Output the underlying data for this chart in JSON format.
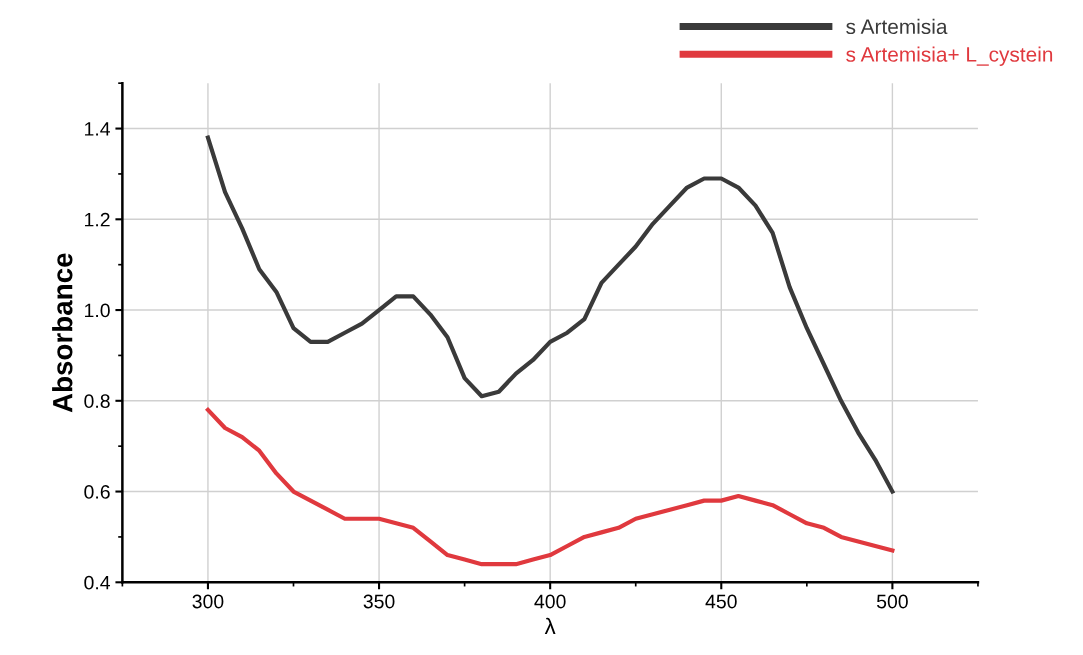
{
  "chart_data": {
    "type": "line",
    "xlabel": "λ",
    "ylabel": "Absorbance",
    "x": [
      300,
      305,
      310,
      315,
      320,
      325,
      330,
      335,
      340,
      345,
      350,
      355,
      360,
      365,
      370,
      375,
      380,
      385,
      390,
      395,
      400,
      405,
      410,
      415,
      420,
      425,
      430,
      435,
      440,
      445,
      450,
      455,
      460,
      465,
      470,
      475,
      480,
      485,
      490,
      495,
      500
    ],
    "series": [
      {
        "name": "s Artemisia",
        "color": "#3a3a3a",
        "values": [
          1.38,
          1.26,
          1.18,
          1.09,
          1.04,
          0.96,
          0.93,
          0.93,
          0.95,
          0.97,
          1.0,
          1.03,
          1.03,
          0.99,
          0.94,
          0.85,
          0.81,
          0.82,
          0.86,
          0.89,
          0.93,
          0.95,
          0.98,
          1.06,
          1.1,
          1.14,
          1.19,
          1.23,
          1.27,
          1.29,
          1.29,
          1.27,
          1.23,
          1.17,
          1.05,
          0.96,
          0.88,
          0.8,
          0.73,
          0.67,
          0.6
        ]
      },
      {
        "name": "s Artemisia+ L_cystein",
        "color": "#e0393e",
        "values": [
          0.78,
          0.74,
          0.72,
          0.69,
          0.64,
          0.6,
          0.58,
          0.56,
          0.54,
          0.54,
          0.54,
          0.53,
          0.52,
          0.49,
          0.46,
          0.45,
          0.44,
          0.44,
          0.44,
          0.45,
          0.46,
          0.48,
          0.5,
          0.51,
          0.52,
          0.54,
          0.55,
          0.56,
          0.57,
          0.58,
          0.58,
          0.59,
          0.58,
          0.57,
          0.55,
          0.53,
          0.52,
          0.5,
          0.49,
          0.48,
          0.47
        ]
      }
    ],
    "xlim": [
      275,
      525
    ],
    "xticks": [
      300,
      350,
      400,
      450,
      500
    ],
    "ylim": [
      0.4,
      1.5
    ],
    "yticks": [
      {
        "value": 0.4,
        "label": "0.4"
      },
      {
        "value": 0.6,
        "label": "0.6"
      },
      {
        "value": 0.8,
        "label": "0.8"
      },
      {
        "value": 1.0,
        "label": "1.0"
      },
      {
        "value": 1.2,
        "label": "1.2"
      },
      {
        "value": 1.4,
        "label": "1.4"
      }
    ],
    "grid": true,
    "legend": "top right",
    "line_style": "solid",
    "marker": "none"
  }
}
